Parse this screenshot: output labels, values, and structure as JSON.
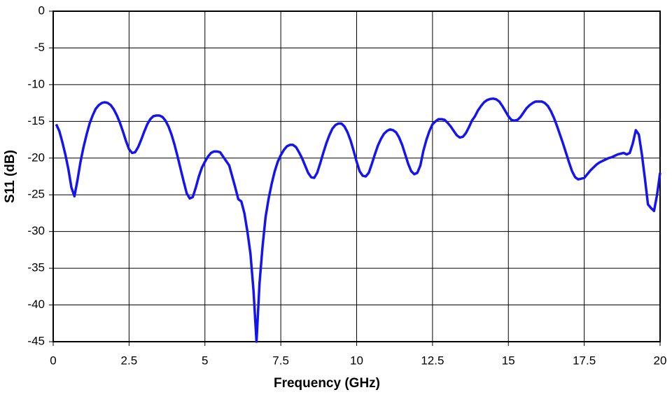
{
  "chart_data": {
    "type": "line",
    "xlabel": "Frequency (GHz)",
    "ylabel": "S11 (dB)",
    "x": [
      0.1,
      0.2,
      0.3,
      0.4,
      0.5,
      0.6,
      0.7,
      0.8,
      0.9,
      1.0,
      1.1,
      1.2,
      1.3,
      1.4,
      1.5,
      1.6,
      1.7,
      1.8,
      1.9,
      2.0,
      2.1,
      2.2,
      2.3,
      2.4,
      2.5,
      2.6,
      2.7,
      2.8,
      2.9,
      3.0,
      3.1,
      3.2,
      3.3,
      3.4,
      3.5,
      3.6,
      3.7,
      3.8,
      3.9,
      4.0,
      4.1,
      4.2,
      4.3,
      4.4,
      4.5,
      4.6,
      4.7,
      4.8,
      4.9,
      5.0,
      5.1,
      5.2,
      5.3,
      5.4,
      5.5,
      5.6,
      5.7,
      5.8,
      5.9,
      6.0,
      6.1,
      6.2,
      6.3,
      6.4,
      6.5,
      6.6,
      6.7,
      6.8,
      6.9,
      7.0,
      7.1,
      7.2,
      7.3,
      7.4,
      7.5,
      7.6,
      7.7,
      7.8,
      7.9,
      8.0,
      8.1,
      8.2,
      8.3,
      8.4,
      8.5,
      8.6,
      8.7,
      8.8,
      8.9,
      9.0,
      9.1,
      9.2,
      9.3,
      9.4,
      9.5,
      9.6,
      9.7,
      9.8,
      9.9,
      10.0,
      10.1,
      10.2,
      10.3,
      10.4,
      10.5,
      10.6,
      10.7,
      10.8,
      10.9,
      11.0,
      11.1,
      11.2,
      11.3,
      11.4,
      11.5,
      11.6,
      11.7,
      11.8,
      11.9,
      12.0,
      12.1,
      12.2,
      12.3,
      12.4,
      12.5,
      12.6,
      12.7,
      12.8,
      12.9,
      13.0,
      13.1,
      13.2,
      13.3,
      13.4,
      13.5,
      13.6,
      13.7,
      13.8,
      13.9,
      14.0,
      14.1,
      14.2,
      14.3,
      14.4,
      14.5,
      14.6,
      14.7,
      14.8,
      14.9,
      15.0,
      15.1,
      15.2,
      15.3,
      15.4,
      15.5,
      15.6,
      15.7,
      15.8,
      15.9,
      16.0,
      16.1,
      16.2,
      16.3,
      16.4,
      16.5,
      16.6,
      16.7,
      16.8,
      16.9,
      17.0,
      17.1,
      17.2,
      17.3,
      17.4,
      17.5,
      17.6,
      17.7,
      17.8,
      17.9,
      18.0,
      18.1,
      18.2,
      18.3,
      18.4,
      18.5,
      18.6,
      18.7,
      18.8,
      18.9,
      19.0,
      19.1,
      19.2,
      19.3,
      19.4,
      19.5,
      19.6,
      19.7,
      19.8,
      19.9,
      20.0
    ],
    "series": [
      {
        "name": "S11",
        "color": "#1414f0",
        "values": [
          -15.4,
          -16.3,
          -17.8,
          -19.5,
          -21.5,
          -24,
          -25.2,
          -23,
          -20.5,
          -18.5,
          -16.8,
          -15.3,
          -14.2,
          -13.3,
          -12.8,
          -12.5,
          -12.4,
          -12.5,
          -12.8,
          -13.4,
          -14.2,
          -15.2,
          -16.4,
          -17.7,
          -18.8,
          -19.3,
          -19.2,
          -18.5,
          -17.5,
          -16.4,
          -15.4,
          -14.7,
          -14.3,
          -14.2,
          -14.2,
          -14.4,
          -14.9,
          -15.7,
          -16.8,
          -18.2,
          -19.8,
          -21.5,
          -23.2,
          -24.8,
          -25.5,
          -25.3,
          -24,
          -22.5,
          -21.3,
          -20.5,
          -19.8,
          -19.3,
          -19.1,
          -19.1,
          -19.2,
          -19.8,
          -20.4,
          -21,
          -22.5,
          -24,
          -25.6,
          -25.9,
          -27.5,
          -30,
          -33,
          -38,
          -45,
          -37,
          -32,
          -28,
          -25.5,
          -23.5,
          -21.8,
          -20.5,
          -19.6,
          -18.9,
          -18.4,
          -18.2,
          -18.2,
          -18.5,
          -19.2,
          -20,
          -21,
          -22,
          -22.6,
          -22.7,
          -22,
          -20.7,
          -19.3,
          -18,
          -16.9,
          -16,
          -15.5,
          -15.3,
          -15.3,
          -15.7,
          -16.5,
          -17.6,
          -19,
          -20.5,
          -21.8,
          -22.4,
          -22.5,
          -22,
          -20.8,
          -19.5,
          -18.3,
          -17.4,
          -16.7,
          -16.3,
          -16.1,
          -16.2,
          -16.5,
          -17.2,
          -18.2,
          -19.5,
          -20.8,
          -21.8,
          -22.2,
          -22,
          -21,
          -19,
          -17.5,
          -16.3,
          -15.4,
          -15,
          -14.7,
          -14.7,
          -14.8,
          -15.2,
          -15.7,
          -16.3,
          -16.9,
          -17.2,
          -17.1,
          -16.6,
          -15.8,
          -14.9,
          -14.3,
          -13.5,
          -12.9,
          -12.4,
          -12.1,
          -11.95,
          -11.9,
          -12,
          -12.3,
          -12.9,
          -13.6,
          -14.3,
          -14.8,
          -14.9,
          -14.8,
          -14.4,
          -13.8,
          -13.2,
          -12.8,
          -12.5,
          -12.3,
          -12.3,
          -12.3,
          -12.5,
          -12.9,
          -13.6,
          -14.5,
          -15.6,
          -16.8,
          -18,
          -19.3,
          -20.6,
          -21.8,
          -22.6,
          -22.9,
          -22.8,
          -22.7,
          -22.2,
          -21.7,
          -21.3,
          -20.9,
          -20.6,
          -20.4,
          -20.2,
          -20,
          -19.9,
          -19.7,
          -19.5,
          -19.4,
          -19.3,
          -19.5,
          -19.3,
          -18,
          -16.2,
          -16.8,
          -19.5,
          -22.8,
          -26.3,
          -26.8,
          -27.2,
          -25,
          -22
        ]
      }
    ],
    "xlim": [
      0,
      20
    ],
    "xticks": [
      0,
      2.5,
      5,
      7.5,
      10,
      12.5,
      15,
      17.5,
      20
    ],
    "ylim": [
      -45,
      0
    ],
    "yticks": [
      0,
      -5,
      -10,
      -15,
      -20,
      -25,
      -30,
      -35,
      -40,
      -45
    ],
    "grid": true,
    "legend": false
  }
}
